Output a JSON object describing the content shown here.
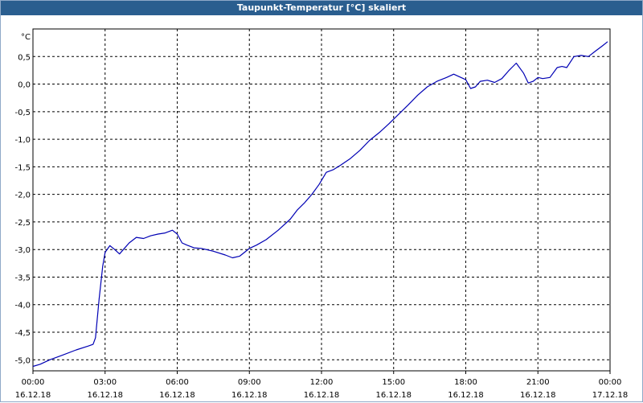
{
  "window": {
    "title": "Taupunkt-Temperatur [°C] skaliert"
  },
  "colors": {
    "line": "#0000b4",
    "titlebar": "#2a5e8f",
    "grid": "#000000"
  },
  "chart_data": {
    "type": "line",
    "title": "Taupunkt-Temperatur [°C] skaliert",
    "ylabel": "°C",
    "xlabel": "",
    "ylim": [
      -5.2,
      1.0
    ],
    "xlim": [
      0,
      24
    ],
    "grid": true,
    "y_ticks": [
      "0,5",
      "0,0",
      "-0,5",
      "-1,0",
      "-1,5",
      "-2,0",
      "-2,5",
      "-3,0",
      "-3,5",
      "-4,0",
      "-4,5",
      "-5,0"
    ],
    "y_tick_values": [
      0.5,
      0.0,
      -0.5,
      -1.0,
      -1.5,
      -2.0,
      -2.5,
      -3.0,
      -3.5,
      -4.0,
      -4.5,
      -5.0
    ],
    "x_ticks": [
      {
        "time": "00:00",
        "date": "16.12.18"
      },
      {
        "time": "03:00",
        "date": "16.12.18"
      },
      {
        "time": "06:00",
        "date": "16.12.18"
      },
      {
        "time": "09:00",
        "date": "16.12.18"
      },
      {
        "time": "12:00",
        "date": "16.12.18"
      },
      {
        "time": "15:00",
        "date": "16.12.18"
      },
      {
        "time": "18:00",
        "date": "16.12.18"
      },
      {
        "time": "21:00",
        "date": "16.12.18"
      },
      {
        "time": "00:00",
        "date": "17.12.18"
      }
    ],
    "series": [
      {
        "x": [
          0,
          0.3,
          0.7,
          1.2,
          1.8,
          2.3,
          2.5,
          2.6,
          2.75,
          2.9,
          3.0,
          3.2,
          3.4,
          3.6,
          3.8,
          4.0,
          4.3,
          4.6,
          4.9,
          5.2,
          5.5,
          5.8,
          6.0,
          6.2,
          6.4,
          6.7,
          7.0,
          7.5,
          8.0,
          8.3,
          8.6,
          8.8,
          9.0,
          9.3,
          9.7,
          10.2,
          10.7,
          11.0,
          11.3,
          11.6,
          11.9,
          12.2,
          12.5,
          12.8,
          13.2,
          13.6,
          14.0,
          14.4,
          14.8,
          15.2,
          15.6,
          16.0,
          16.4,
          16.8,
          17.2,
          17.5,
          17.8,
          18.0,
          18.2,
          18.4,
          18.6,
          18.9,
          19.2,
          19.5,
          19.8,
          20.1,
          20.4,
          20.6,
          20.8,
          21.0,
          21.2,
          21.5,
          21.8,
          22.0,
          22.2,
          22.5,
          22.8,
          23.1,
          23.4,
          23.7,
          23.9
        ],
        "y": [
          -5.12,
          -5.08,
          -5.0,
          -4.92,
          -4.82,
          -4.75,
          -4.72,
          -4.6,
          -3.9,
          -3.3,
          -3.05,
          -2.93,
          -3.0,
          -3.08,
          -2.98,
          -2.88,
          -2.78,
          -2.8,
          -2.75,
          -2.72,
          -2.7,
          -2.65,
          -2.72,
          -2.88,
          -2.92,
          -2.97,
          -2.98,
          -3.03,
          -3.1,
          -3.15,
          -3.12,
          -3.05,
          -2.98,
          -2.92,
          -2.82,
          -2.65,
          -2.45,
          -2.28,
          -2.15,
          -2.0,
          -1.82,
          -1.6,
          -1.55,
          -1.47,
          -1.35,
          -1.2,
          -1.02,
          -0.88,
          -0.72,
          -0.55,
          -0.38,
          -0.2,
          -0.05,
          0.05,
          0.12,
          0.18,
          0.12,
          0.08,
          -0.08,
          -0.05,
          0.05,
          0.07,
          0.03,
          0.1,
          0.25,
          0.38,
          0.2,
          0.02,
          0.05,
          0.12,
          0.1,
          0.12,
          0.3,
          0.32,
          0.3,
          0.5,
          0.52,
          0.5,
          0.6,
          0.7,
          0.77
        ],
        "color": "#0000b4"
      }
    ]
  }
}
